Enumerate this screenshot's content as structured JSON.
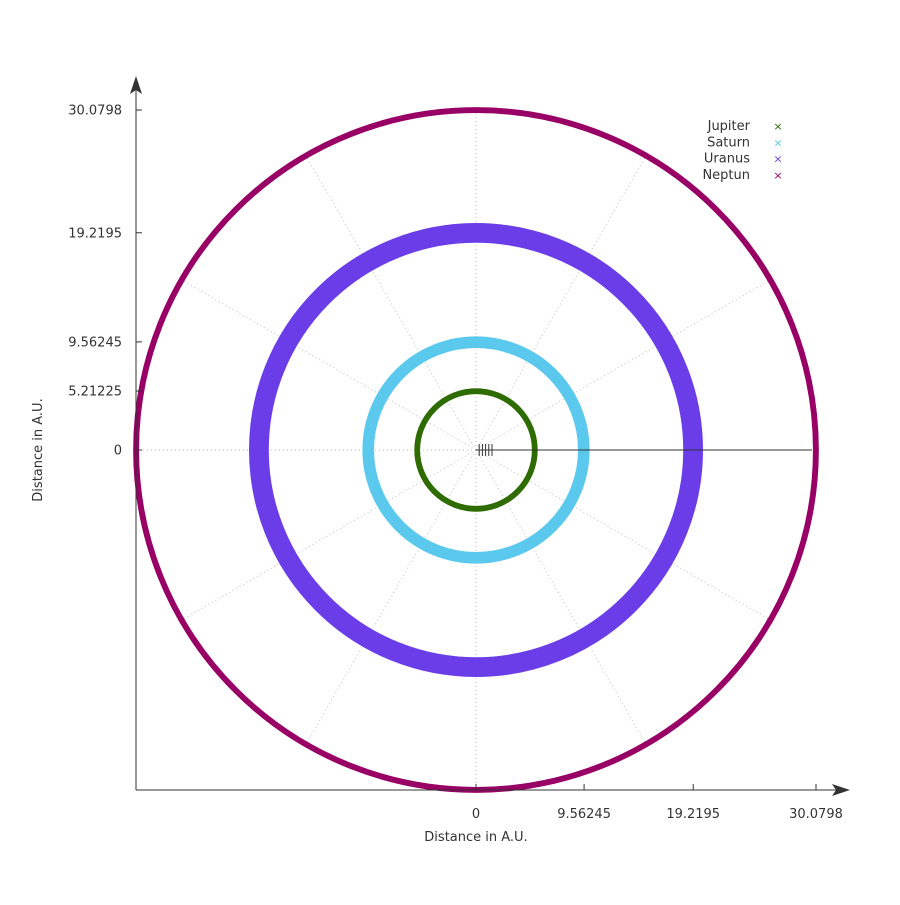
{
  "chart_data": {
    "type": "scatter",
    "subtype": "polar-orbits",
    "xlabel": "Distance in A.U.",
    "ylabel": "Distance in A.U.",
    "xlim": [
      -30.0798,
      30.0798
    ],
    "ylim": [
      -30.0798,
      30.0798
    ],
    "x_ticks": [
      "0",
      "9.56245",
      "19.2195",
      "30.0798"
    ],
    "y_ticks": [
      "30.0798",
      "19.2195",
      "9.56245",
      "5.21225",
      "0"
    ],
    "x_tick_values": [
      0,
      9.56245,
      19.2195,
      30.0798
    ],
    "y_tick_values": [
      30.0798,
      19.2195,
      9.56245,
      5.21225,
      0
    ],
    "grid": true,
    "polar_grid_angle_step_deg": 30,
    "legend_position": "top-right",
    "marker": "×",
    "series": [
      {
        "name": "Jupiter",
        "color": "#2e6b00",
        "radius_min": 4.95,
        "radius_max": 5.46
      },
      {
        "name": "Saturn",
        "color": "#5bc8ee",
        "radius_min": 9.02,
        "radius_max": 10.05
      },
      {
        "name": "Uranus",
        "color": "#6a3de8",
        "radius_min": 18.33,
        "radius_max": 20.08
      },
      {
        "name": "Neptun",
        "color": "#990066",
        "radius_min": 29.81,
        "radius_max": 30.33
      }
    ]
  }
}
